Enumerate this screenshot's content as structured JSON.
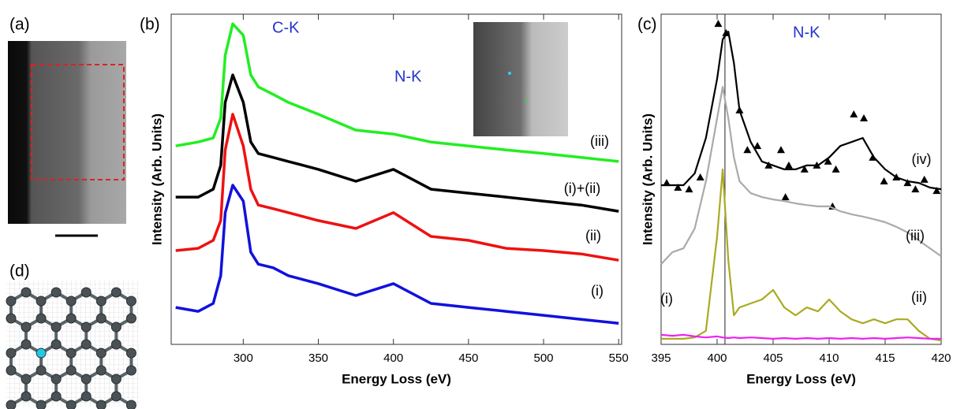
{
  "panel_labels": [
    "(a)",
    "(b)",
    "(c)",
    "(d)"
  ],
  "chart_data": [
    {
      "type": "line",
      "xlabel": "Energy Loss (eV)",
      "ylabel": "Intensity (Arb. Units)",
      "annotations": [
        "C-K",
        "N-K"
      ],
      "xlim": [
        252,
        552
      ],
      "ylim": [
        0,
        100
      ],
      "xticks": [
        300,
        350,
        400,
        450,
        500,
        550
      ],
      "x": [
        255,
        270,
        280,
        285,
        288,
        293,
        300,
        305,
        310,
        320,
        330,
        350,
        375,
        400,
        425,
        450,
        475,
        500,
        525,
        550
      ],
      "series": [
        {
          "name": "(iii)",
          "color": "#22ee22",
          "values": [
            60.1,
            61.3,
            62.5,
            68.5,
            87.6,
            97.1,
            93.6,
            81.6,
            78.0,
            75.7,
            73.3,
            69.7,
            64.9,
            63.7,
            61.3,
            60.1,
            58.9,
            57.8,
            56.6,
            55.4
          ]
        },
        {
          "name": "(i)+(ii)",
          "color": "#000000",
          "values": [
            44.6,
            44.6,
            47.0,
            54.2,
            73.3,
            81.6,
            73.3,
            61.3,
            57.8,
            56.6,
            55.4,
            53.0,
            49.4,
            53.0,
            47.0,
            45.8,
            44.6,
            43.4,
            42.2,
            40.3
          ]
        },
        {
          "name": "(ii)",
          "color": "#ee1111",
          "values": [
            28.4,
            29.1,
            31.5,
            37.5,
            58.9,
            69.7,
            60.1,
            47.0,
            42.2,
            41.1,
            39.9,
            37.5,
            35.1,
            39.9,
            32.7,
            31.5,
            29.1,
            28.4,
            27.4,
            25.5
          ]
        },
        {
          "name": "(i)",
          "color": "#1111dd",
          "values": [
            11.2,
            10.0,
            12.4,
            20.8,
            39.9,
            48.2,
            43.4,
            27.9,
            24.3,
            23.2,
            20.8,
            18.4,
            14.8,
            18.4,
            12.4,
            11.2,
            10.0,
            8.8,
            7.6,
            6.4
          ]
        }
      ]
    },
    {
      "type": "line",
      "xlabel": "Energy Loss (eV)",
      "ylabel": "Intensity (Arb. Units)",
      "annotations": [
        "N-K"
      ],
      "xlim": [
        395,
        420
      ],
      "ylim": [
        0,
        100
      ],
      "xticks": [
        395,
        400,
        405,
        410,
        415,
        420
      ],
      "vline": 400.7,
      "x": [
        395,
        396,
        397,
        398,
        399,
        400,
        400.5,
        401,
        401.5,
        402,
        403,
        404,
        405,
        406,
        407,
        408,
        409,
        410,
        411,
        412,
        413,
        414,
        415,
        416,
        417,
        418,
        419,
        420
      ],
      "series": [
        {
          "type": "scatter",
          "marker": "triangle",
          "color": "#000000",
          "x": [
            395.5,
            396.5,
            397.5,
            398.5,
            400.1,
            400.8,
            402,
            402.7,
            403.6,
            404.6,
            405.7,
            406.1,
            406.4,
            407.8,
            408.9,
            409.9,
            410.3,
            410.6,
            412.2,
            413.1,
            413.9,
            414.9,
            416,
            417,
            417.7,
            418.5,
            419.6
          ],
          "values": [
            48.9,
            47.5,
            47.0,
            50.6,
            97.1,
            94.3,
            70.9,
            58.9,
            60.1,
            54.2,
            58.9,
            44.6,
            54.2,
            53.0,
            54.2,
            55.4,
            41.8,
            53.0,
            69.7,
            68.5,
            56.6,
            49.4,
            50.6,
            48.9,
            47.0,
            49.9,
            46.5
          ]
        },
        {
          "name": "(iv)",
          "color": "#000000",
          "values": [
            48.2,
            48.2,
            48.2,
            51.8,
            62.5,
            80.4,
            92.4,
            94.7,
            85.2,
            70.9,
            61.3,
            55.4,
            54.2,
            53.0,
            53.0,
            54.2,
            54.2,
            56.6,
            60.1,
            61.3,
            62.5,
            56.6,
            53.0,
            50.6,
            49.4,
            48.9,
            47.5,
            47.0
          ]
        },
        {
          "name": "(iii)",
          "color": "#aaaaaa",
          "values": [
            24.3,
            27.9,
            29.1,
            35.1,
            49.4,
            68.5,
            78.0,
            68.5,
            56.6,
            49.4,
            45.8,
            44.6,
            43.9,
            43.4,
            42.7,
            42.2,
            41.8,
            41.8,
            40.3,
            39.4,
            38.7,
            37.9,
            37.0,
            35.6,
            33.9,
            31.5,
            29.1,
            26.7
          ]
        },
        {
          "name": "(ii)",
          "color": "#aaaa22",
          "values": [
            1.7,
            1.7,
            1.7,
            2.1,
            4.1,
            32.7,
            53.0,
            25.5,
            8.8,
            11.2,
            12.4,
            13.6,
            16.5,
            11.2,
            8.8,
            11.2,
            10.0,
            13.6,
            10.0,
            7.6,
            6.4,
            7.6,
            6.4,
            7.6,
            7.6,
            4.1,
            1.7,
            1.2
          ]
        },
        {
          "name": "(i)",
          "color": "#ee22ee",
          "values": [
            2.9,
            2.6,
            2.9,
            2.4,
            2.1,
            2.4,
            2.1,
            1.9,
            2.1,
            1.9,
            2.1,
            1.9,
            1.7,
            1.9,
            1.7,
            1.9,
            1.7,
            1.9,
            1.7,
            1.9,
            1.7,
            1.9,
            1.7,
            1.9,
            2.1,
            1.9,
            1.7,
            1.7
          ]
        }
      ]
    }
  ]
}
